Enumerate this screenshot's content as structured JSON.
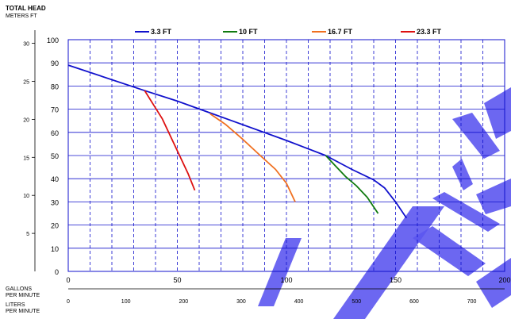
{
  "header": {
    "title": "TOTAL HEAD",
    "units": "METERS   FT"
  },
  "bottom_axes": {
    "gpm_label_1": "GALLONS",
    "gpm_label_2": "PER MINUTE",
    "lpm_label_1": "LITERS",
    "lpm_label_2": "PER MINUTE"
  },
  "chart_data": {
    "type": "line",
    "series": [
      {
        "name": "3.3 FT",
        "color": "#1010cc",
        "x": [
          0,
          35,
          50,
          75,
          100,
          118,
          130,
          140,
          145,
          150,
          155
        ],
        "y": [
          89,
          78,
          73.5,
          65,
          56.5,
          50,
          44,
          39.5,
          36,
          30,
          23
        ]
      },
      {
        "name": "10 FT",
        "color": "#107a10",
        "x": [
          118,
          122,
          127,
          132,
          137,
          142
        ],
        "y": [
          50,
          46,
          41,
          37,
          32,
          25
        ]
      },
      {
        "name": "16.7 FT",
        "color": "#f07020",
        "x": [
          65,
          72,
          80,
          88,
          95,
          100,
          104
        ],
        "y": [
          68,
          63.5,
          57,
          50,
          44,
          38,
          30
        ]
      },
      {
        "name": "23.3 FT",
        "color": "#dd1010",
        "x": [
          35,
          39,
          43,
          47,
          51,
          55,
          58
        ],
        "y": [
          78,
          72,
          66,
          58,
          50,
          42,
          35
        ]
      }
    ],
    "x_gpm": {
      "range": [
        0,
        200
      ],
      "ticks": [
        0,
        50,
        100,
        150,
        200
      ]
    },
    "x_lpm": {
      "range": [
        0,
        757
      ],
      "ticks": [
        0,
        100,
        200,
        300,
        400,
        500,
        600,
        700
      ]
    },
    "y_ft": {
      "range": [
        0,
        100
      ],
      "ticks": [
        0,
        10,
        20,
        30,
        40,
        50,
        60,
        70,
        80,
        90,
        100
      ]
    },
    "y_m": {
      "ticks": [
        5,
        10,
        15,
        20,
        25,
        30
      ]
    },
    "grid": true,
    "legend_position": "top"
  }
}
